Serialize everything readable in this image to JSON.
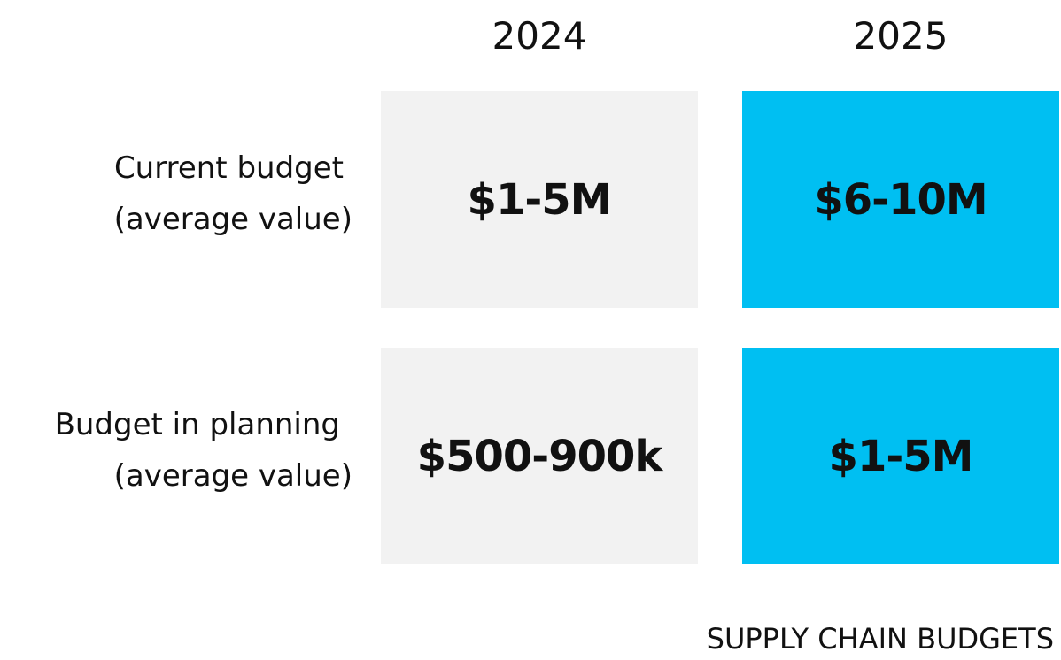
{
  "table": {
    "columns": [
      "2024",
      "2025"
    ],
    "rows": [
      {
        "label": [
          "Current budget",
          "(average value)"
        ],
        "cells": [
          "$1-5M",
          "$6-10M"
        ]
      },
      {
        "label": [
          "Budget in planning",
          "(average value)"
        ],
        "cells": [
          "$500-900k",
          "$1-5M"
        ]
      }
    ]
  },
  "footer": "SUPPLY CHAIN BUDGETS"
}
